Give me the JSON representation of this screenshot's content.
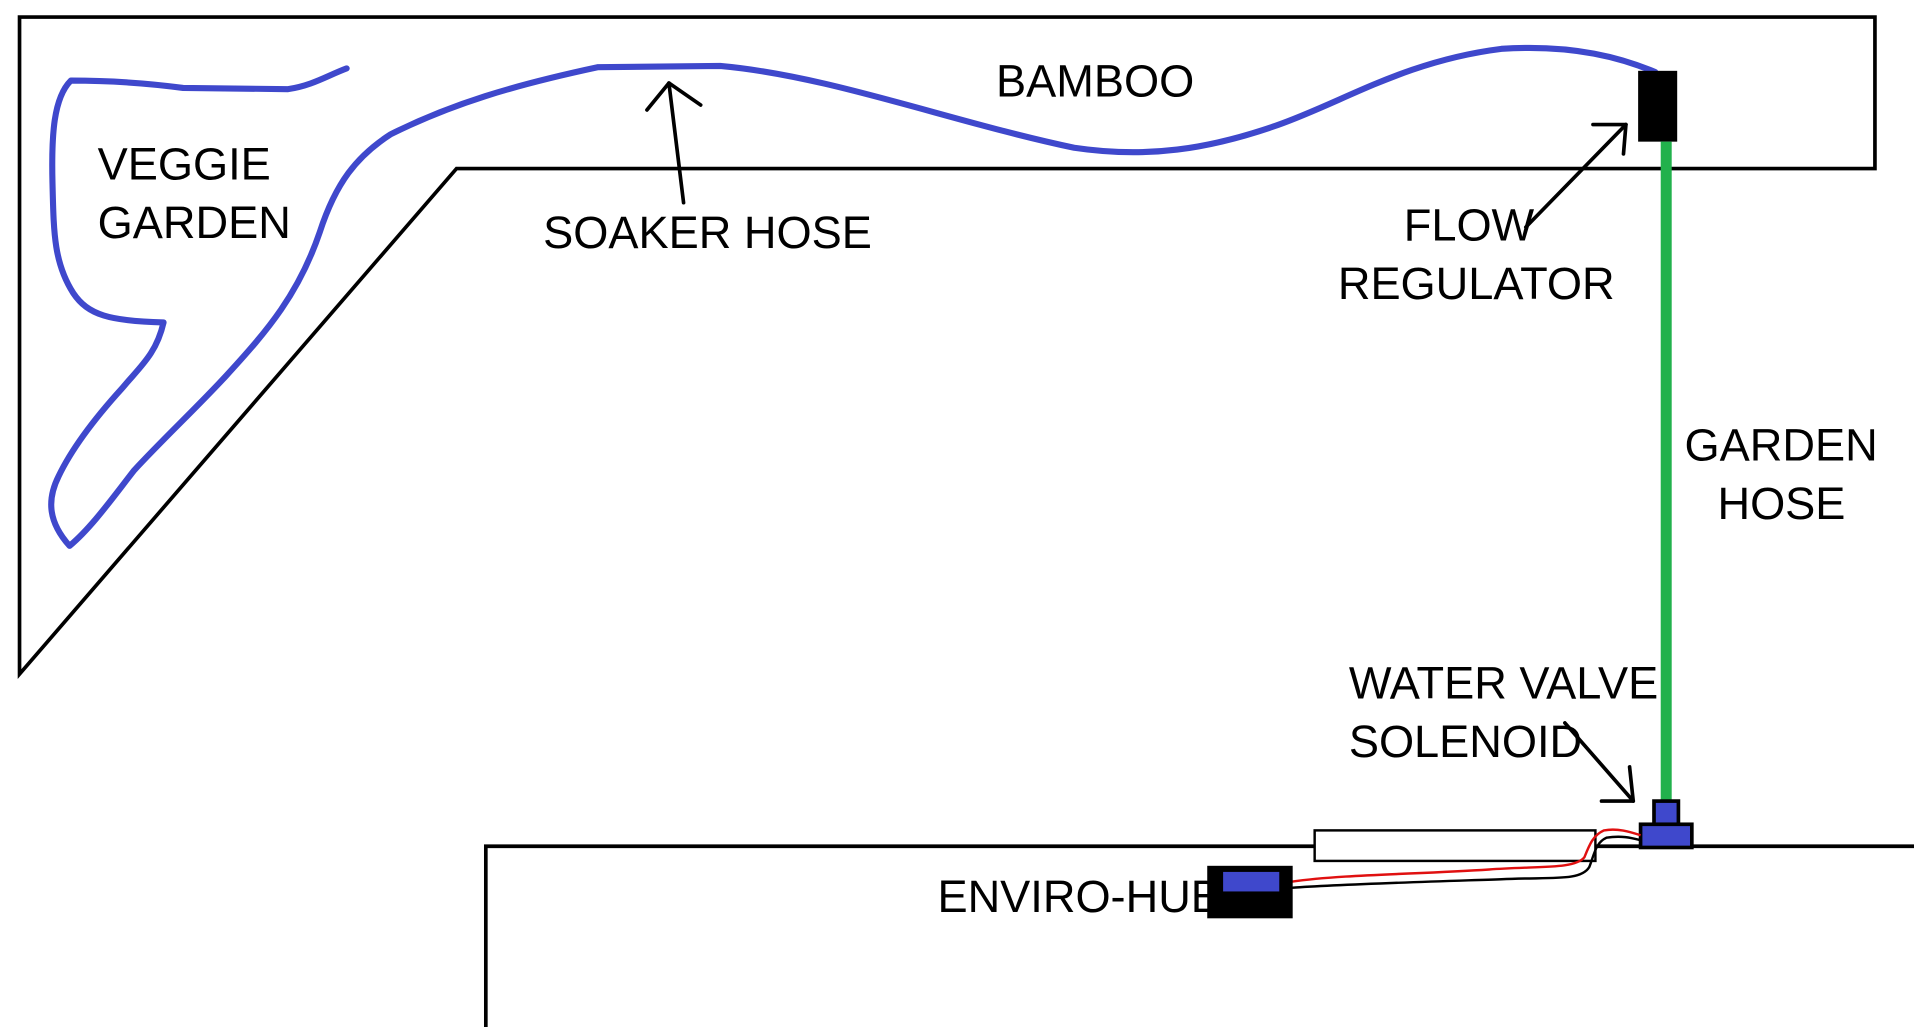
{
  "labels": {
    "veggie_garden": [
      "VEGGIE",
      "GARDEN"
    ],
    "bamboo": "BAMBOO",
    "soaker_hose": "SOAKER HOSE",
    "flow_regulator": [
      "FLOW",
      "REGULATOR"
    ],
    "garden_hose": [
      "GARDEN",
      "HOSE"
    ],
    "water_valve_solenoid": [
      "WATER VALVE",
      "SOLENOID"
    ],
    "enviro_hub": "ENVIRO-HUB"
  },
  "colors": {
    "outline": "#000000",
    "soaker_hose": "#3f48cc",
    "garden_hose": "#22b14c",
    "device_body": "#000000",
    "device_accent": "#3f48cc",
    "red_wire": "#e01010",
    "black_wire": "#000000",
    "background": "#ffffff"
  }
}
